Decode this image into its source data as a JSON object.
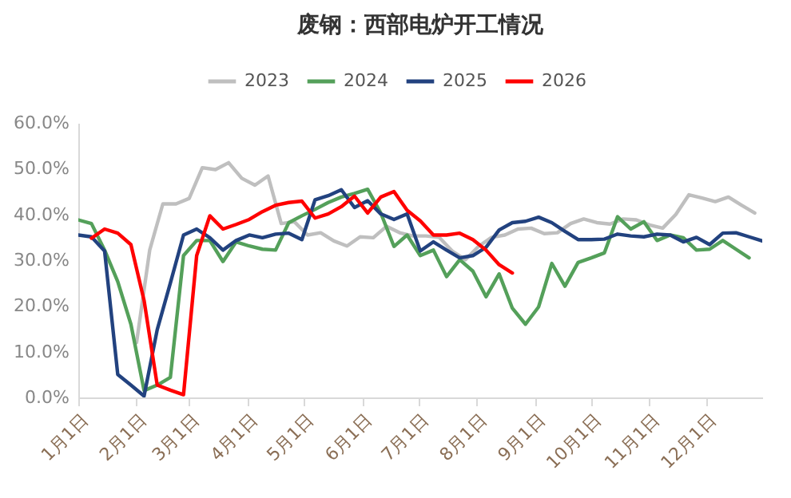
{
  "chart_data": {
    "type": "line",
    "title": "废钢：西部电炉开工情况",
    "x": [
      "--01-01",
      "--01-08",
      "--01-15",
      "--01-22",
      "--01-29",
      "--02-05",
      "--02-12",
      "--02-19",
      "--02-26",
      "--03-05",
      "--03-12",
      "--03-19",
      "--03-26",
      "--04-02",
      "--04-09",
      "--04-16",
      "--04-23",
      "--04-30",
      "--05-07",
      "--05-14",
      "--05-21",
      "--05-28",
      "--06-04",
      "--06-11",
      "--06-18",
      "--06-25",
      "--07-02",
      "--07-09",
      "--07-16",
      "--07-23",
      "--07-30",
      "--08-06",
      "--08-13",
      "--08-20",
      "--08-27",
      "--09-03",
      "--09-10",
      "--09-17",
      "--09-24",
      "--10-01",
      "--10-08",
      "--10-15",
      "--10-22",
      "--10-29",
      "--11-05",
      "--11-12",
      "--11-19",
      "--11-26",
      "--12-03",
      "--12-10",
      "--12-17",
      "--12-24",
      "--12-31"
    ],
    "series": [
      {
        "name": "2023",
        "color": "#bfbfbf",
        "x": [
          "--02-01",
          "--02-08",
          "--02-15",
          "--02-22",
          "--03-01",
          "--03-08",
          "--03-15",
          "--03-22",
          "--03-29",
          "--04-05",
          "--04-12",
          "--04-19",
          "--04-26",
          "--05-03",
          "--05-10",
          "--05-17",
          "--05-24",
          "--05-31",
          "--06-07",
          "--06-14",
          "--06-21",
          "--06-28",
          "--07-05",
          "--07-12",
          "--07-19",
          "--07-26",
          "--08-02",
          "--08-09",
          "--08-16",
          "--08-23",
          "--08-30",
          "--09-06",
          "--09-13",
          "--09-20",
          "--09-27",
          "--10-04",
          "--10-11",
          "--10-18",
          "--10-25",
          "--11-01",
          "--11-08",
          "--11-15",
          "--11-22",
          "--11-29",
          "--12-06",
          "--12-13",
          "--12-20",
          "--12-27"
        ],
        "values": [
          12,
          32.2,
          42.3,
          42.3,
          43.5,
          50.2,
          49.8,
          51.3,
          47.9,
          46.4,
          48.4,
          38,
          38.4,
          35.5,
          36,
          34.2,
          33.1,
          35.1,
          34.9,
          37.4,
          36,
          35.3,
          35.3,
          35,
          32,
          30.1,
          33,
          35,
          35.5,
          36.8,
          37,
          35.8,
          36,
          38,
          39,
          38.2,
          37.9,
          39,
          38.8,
          37.7,
          37,
          40,
          44.3,
          43.6,
          42.8,
          43.8,
          42,
          40.3
        ]
      },
      {
        "name": "2024",
        "color": "#54a05a",
        "values": [
          38.8,
          38,
          32.2,
          25.3,
          16,
          1.5,
          2.7,
          4.4,
          31,
          34.3,
          34.3,
          29.7,
          34,
          33.1,
          32.4,
          32.2,
          38.2,
          39.7,
          41.1,
          42.6,
          43.8,
          44.6,
          45.5,
          40.3,
          33,
          35.5,
          31,
          32.2,
          26.4,
          30.1,
          27.6,
          22,
          27,
          19.5,
          16,
          19.8,
          29.3,
          24.3,
          29.5,
          30.5,
          31.6,
          39.5,
          36.8,
          38.4,
          34.3,
          35.5,
          34.9,
          32.2,
          32.4,
          34.3,
          32.4,
          30.5,
          null
        ]
      },
      {
        "name": "2025",
        "color": "#22427f",
        "values": [
          35.5,
          35.1,
          32,
          5,
          2.7,
          0.3,
          14.8,
          25,
          35.5,
          36.8,
          34.9,
          32.2,
          34.3,
          35.5,
          34.9,
          35.7,
          35.9,
          34.5,
          43.2,
          44.1,
          45.4,
          41.5,
          43,
          40.1,
          38.9,
          40.1,
          32,
          34,
          32.2,
          30.5,
          31,
          32.8,
          36.6,
          38.2,
          38.5,
          39.4,
          38.2,
          36.3,
          34.5,
          34.5,
          34.6,
          35.7,
          35.3,
          35.1,
          35.7,
          35.5,
          34,
          35,
          33.4,
          35.9,
          36,
          35.1,
          34.2
        ]
      },
      {
        "name": "2026",
        "color": "#ff0000",
        "values": [
          null,
          34.8,
          36.8,
          35.9,
          33.4,
          21.2,
          2.7,
          1.6,
          0.6,
          31,
          39.7,
          36.8,
          37.8,
          38.9,
          40.6,
          42,
          42.6,
          42.9,
          39.2,
          40.1,
          41.7,
          44,
          40.3,
          43.8,
          45,
          40.9,
          38.6,
          35.5,
          35.5,
          35.9,
          34.5,
          32.2,
          29,
          27.2,
          null,
          null,
          null,
          null,
          null,
          null,
          null,
          null,
          null,
          null,
          null,
          null,
          null,
          null,
          null,
          null,
          null,
          null,
          null
        ]
      }
    ],
    "xlim": [
      "--01-01",
      "--12-31"
    ],
    "xticks": [
      {
        "value": "--01-01",
        "label": "1月1日"
      },
      {
        "value": "--02-01",
        "label": "2月1日"
      },
      {
        "value": "--03-01",
        "label": "3月1日"
      },
      {
        "value": "--04-01",
        "label": "4月1日"
      },
      {
        "value": "--05-01",
        "label": "5月1日"
      },
      {
        "value": "--06-01",
        "label": "6月1日"
      },
      {
        "value": "--07-01",
        "label": "7月1日"
      },
      {
        "value": "--08-01",
        "label": "8月1日"
      },
      {
        "value": "--09-01",
        "label": "9月1日"
      },
      {
        "value": "--10-01",
        "label": "10月1日"
      },
      {
        "value": "--11-01",
        "label": "11月1日"
      },
      {
        "value": "--12-01",
        "label": "12月1日"
      }
    ],
    "ylim": [
      0,
      60
    ],
    "yticks": [
      {
        "value": 0,
        "label": "0.0%"
      },
      {
        "value": 10,
        "label": "10.0%"
      },
      {
        "value": 20,
        "label": "20.0%"
      },
      {
        "value": 30,
        "label": "30.0%"
      },
      {
        "value": 40,
        "label": "40.0%"
      },
      {
        "value": 50,
        "label": "50.0%"
      },
      {
        "value": 60,
        "label": "60.0%"
      }
    ],
    "legend": "top",
    "grid": false,
    "marker": "none",
    "line_style": "solid"
  }
}
